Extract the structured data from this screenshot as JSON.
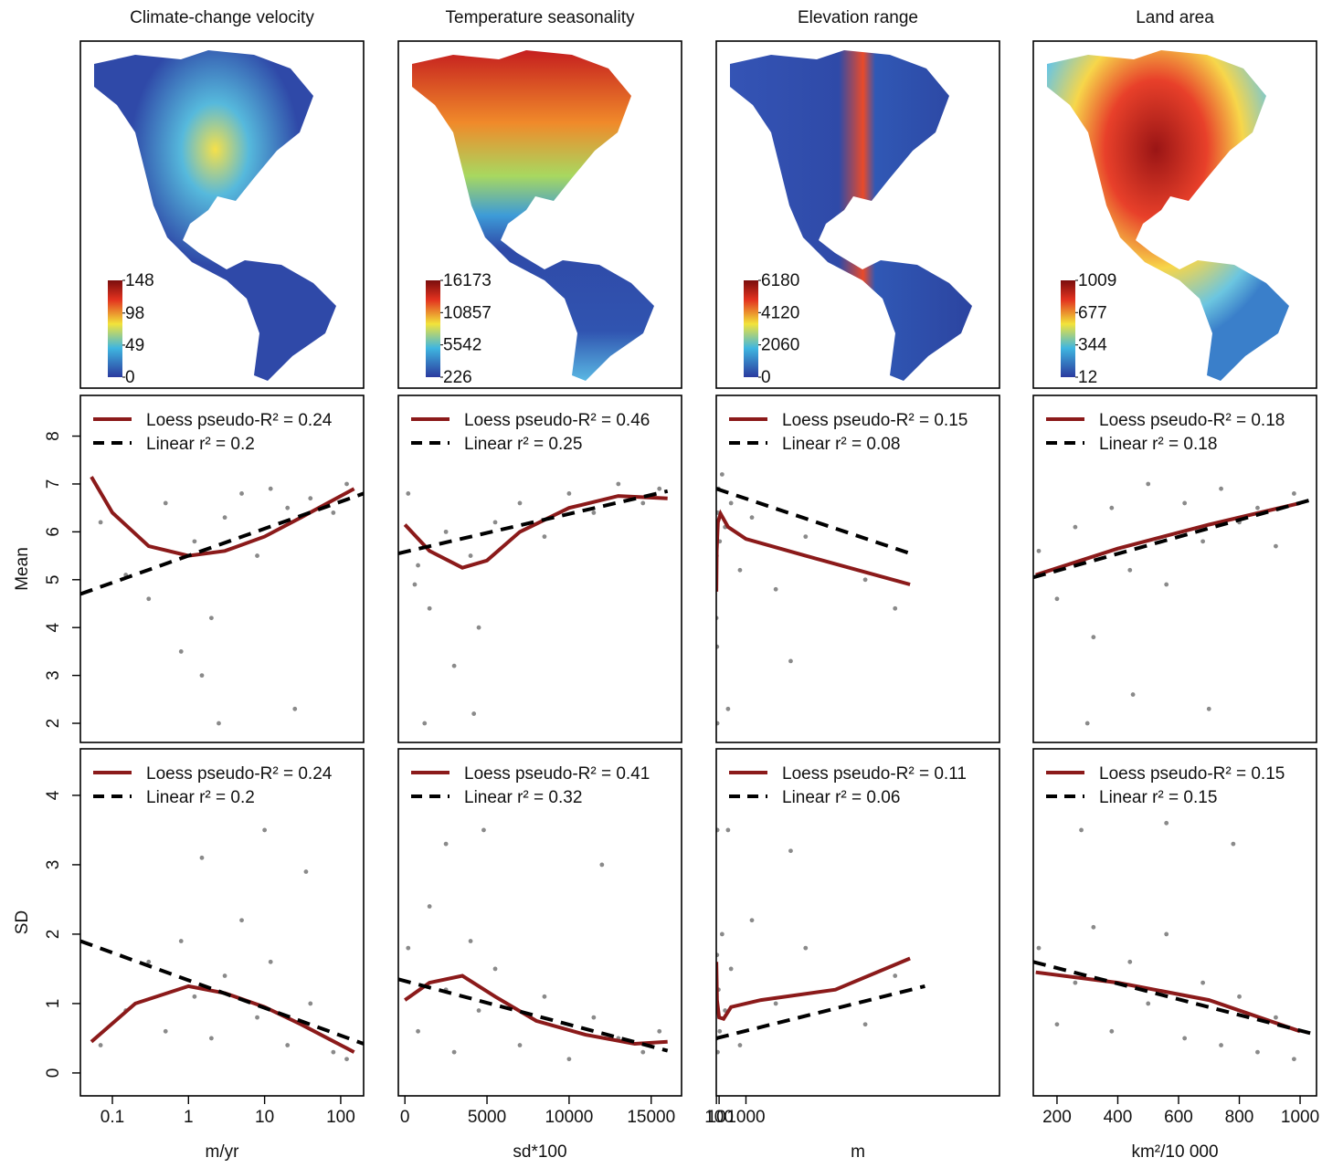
{
  "chart_data": [
    {
      "type": "map",
      "title": "Climate-change velocity",
      "colorbar_lim": [
        0,
        148
      ],
      "colorbar_ticks": [
        0,
        49,
        98,
        148
      ]
    },
    {
      "type": "map",
      "title": "Temperature seasonality",
      "colorbar_lim": [
        226,
        16173
      ],
      "colorbar_ticks": [
        226,
        5542,
        10857,
        16173
      ]
    },
    {
      "type": "map",
      "title": "Elevation range",
      "colorbar_lim": [
        0,
        6180
      ],
      "colorbar_ticks": [
        0,
        2060,
        4120,
        6180
      ]
    },
    {
      "type": "map",
      "title": "Land area",
      "colorbar_lim": [
        12,
        1009
      ],
      "colorbar_ticks": [
        12,
        344,
        677,
        1009
      ]
    },
    {
      "type": "scatter",
      "ylabel": "Mean",
      "log_x": true,
      "xlim": [
        0.038,
        200
      ],
      "ylim": [
        1.6,
        8.85
      ],
      "yticks": [
        2,
        3,
        4,
        5,
        6,
        7,
        8
      ],
      "color": "#8a8a8a",
      "x": [
        0.07,
        0.15,
        0.3,
        0.5,
        0.8,
        1.2,
        2,
        3,
        5,
        8,
        12,
        20,
        40,
        80,
        120,
        2.5,
        25,
        1.5
      ],
      "y": [
        6.2,
        5.1,
        4.6,
        6.6,
        3.5,
        5.8,
        4.2,
        6.3,
        6.8,
        5.5,
        6.9,
        6.5,
        6.7,
        6.4,
        7.0,
        2.0,
        2.3,
        3.0
      ],
      "series": [
        {
          "name": "Loess pseudo-R² = 0.24",
          "color": "#8b1a1a",
          "x": [
            0.053,
            0.1,
            0.3,
            1,
            3,
            10,
            30,
            150
          ],
          "y": [
            7.15,
            6.4,
            5.7,
            5.5,
            5.6,
            5.9,
            6.3,
            6.9
          ]
        },
        {
          "name": "Linear r² = 0.2",
          "color": "#000000",
          "dashed": true,
          "x": [
            0.038,
            200
          ],
          "y": [
            4.7,
            6.8
          ]
        }
      ]
    },
    {
      "type": "scatter",
      "xlim": [
        -400,
        16850
      ],
      "ylim": [
        1.6,
        8.85
      ],
      "color": "#8a8a8a",
      "x": [
        200,
        800,
        1500,
        2500,
        3000,
        4000,
        4500,
        5500,
        7000,
        8500,
        10000,
        11500,
        13000,
        14500,
        15500,
        1200,
        4200,
        600
      ],
      "y": [
        6.8,
        5.3,
        4.4,
        6.0,
        3.2,
        5.5,
        4.0,
        6.2,
        6.6,
        5.9,
        6.8,
        6.4,
        7.0,
        6.6,
        6.9,
        2.0,
        2.2,
        4.9
      ],
      "series": [
        {
          "name": "Loess pseudo-R² = 0.46",
          "color": "#8b1a1a",
          "x": [
            0,
            1500,
            3500,
            5000,
            7000,
            10000,
            13000,
            16000
          ],
          "y": [
            6.15,
            5.6,
            5.25,
            5.4,
            6.0,
            6.5,
            6.75,
            6.7
          ]
        },
        {
          "name": "Linear r² = 0.25",
          "color": "#000000",
          "dashed": true,
          "x": [
            -400,
            16000
          ],
          "y": [
            5.55,
            6.85
          ]
        }
      ]
    },
    {
      "type": "scatter",
      "xlim": [
        5.2,
        9500
      ],
      "ylim": [
        1.6,
        8.85
      ],
      "color": "#8a8a8a",
      "x": [
        8,
        15,
        30,
        50,
        80,
        120,
        200,
        300,
        500,
        800,
        1200,
        2000,
        3000,
        5000,
        6000,
        40,
        400,
        2500
      ],
      "y": [
        4.2,
        5.5,
        3.6,
        6.4,
        6.9,
        5.8,
        7.2,
        6.1,
        6.6,
        5.2,
        6.3,
        4.8,
        5.9,
        5.0,
        4.4,
        2.0,
        2.3,
        3.3
      ],
      "series": [
        {
          "name": "Loess pseudo-R² = 0.15",
          "color": "#8b1a1a",
          "x": [
            7,
            20,
            60,
            150,
            400,
            1000,
            3000,
            6500
          ],
          "y": [
            4.75,
            5.6,
            6.2,
            6.38,
            6.1,
            5.85,
            5.5,
            4.9
          ]
        },
        {
          "name": "Linear r² = 0.08",
          "color": "#000000",
          "dashed": true,
          "x": [
            5.2,
            6500
          ],
          "y": [
            6.9,
            5.55
          ]
        }
      ]
    },
    {
      "type": "scatter",
      "xlim": [
        122,
        1054
      ],
      "ylim": [
        1.6,
        8.85
      ],
      "color": "#8a8a8a",
      "x": [
        140,
        200,
        260,
        320,
        380,
        440,
        500,
        560,
        620,
        680,
        740,
        800,
        860,
        920,
        980,
        300,
        700,
        450
      ],
      "y": [
        5.6,
        4.6,
        6.1,
        3.8,
        6.5,
        5.2,
        7.0,
        4.9,
        6.6,
        5.8,
        6.9,
        6.2,
        6.5,
        5.7,
        6.8,
        2.0,
        2.3,
        2.6
      ],
      "series": [
        {
          "name": "Loess pseudo-R² = 0.18",
          "color": "#8b1a1a",
          "x": [
            130,
            400,
            700,
            1000
          ],
          "y": [
            5.1,
            5.65,
            6.15,
            6.6
          ]
        },
        {
          "name": "Linear r² = 0.18",
          "color": "#000000",
          "dashed": true,
          "x": [
            122,
            1054
          ],
          "y": [
            5.05,
            6.7
          ]
        }
      ]
    },
    {
      "type": "scatter",
      "ylabel": "SD",
      "xlabel": "m/yr",
      "log_x": true,
      "xlim": [
        0.038,
        200
      ],
      "ylim": [
        -0.33,
        4.67
      ],
      "yticks": [
        0,
        1,
        2,
        3,
        4
      ],
      "xticks": [
        0.1,
        1,
        10,
        100
      ],
      "color": "#8a8a8a",
      "x": [
        0.07,
        0.15,
        0.3,
        0.5,
        0.8,
        1.2,
        2,
        3,
        5,
        8,
        12,
        20,
        40,
        80,
        120,
        10,
        1.5,
        35
      ],
      "y": [
        0.4,
        0.9,
        1.6,
        0.6,
        1.9,
        1.1,
        0.5,
        1.4,
        2.2,
        0.8,
        1.6,
        0.4,
        1.0,
        0.3,
        0.2,
        3.5,
        3.1,
        2.9
      ],
      "series": [
        {
          "name": "Loess pseudo-R² = 0.24",
          "color": "#8b1a1a",
          "x": [
            0.053,
            0.2,
            1,
            3,
            10,
            30,
            150
          ],
          "y": [
            0.45,
            1.0,
            1.25,
            1.15,
            0.95,
            0.7,
            0.3
          ]
        },
        {
          "name": "Linear r² = 0.2",
          "color": "#000000",
          "dashed": true,
          "x": [
            0.038,
            200
          ],
          "y": [
            1.9,
            0.42
          ]
        }
      ]
    },
    {
      "type": "scatter",
      "xlabel": "sd*100",
      "xlim": [
        -400,
        16850
      ],
      "ylim": [
        -0.33,
        4.67
      ],
      "xticks": [
        0,
        5000,
        10000,
        15000
      ],
      "color": "#8a8a8a",
      "x": [
        200,
        800,
        1500,
        2500,
        3000,
        4000,
        4500,
        5500,
        7000,
        8500,
        10000,
        11500,
        13000,
        14500,
        15500,
        4800,
        2500,
        12000
      ],
      "y": [
        1.8,
        0.6,
        2.4,
        1.2,
        0.3,
        1.9,
        0.9,
        1.5,
        0.4,
        1.1,
        0.2,
        0.8,
        0.5,
        0.3,
        0.6,
        3.5,
        3.3,
        3.0
      ],
      "series": [
        {
          "name": "Loess pseudo-R² = 0.41",
          "color": "#8b1a1a",
          "x": [
            0,
            1500,
            3500,
            5500,
            8000,
            11000,
            14000,
            16000
          ],
          "y": [
            1.05,
            1.3,
            1.4,
            1.1,
            0.75,
            0.55,
            0.42,
            0.45
          ]
        },
        {
          "name": "Linear r² = 0.32",
          "color": "#000000",
          "dashed": true,
          "x": [
            -400,
            16000
          ],
          "y": [
            1.35,
            0.32
          ]
        }
      ]
    },
    {
      "type": "scatter",
      "xlabel": "m",
      "xlim": [
        5.2,
        9500
      ],
      "ylim": [
        -0.33,
        4.67
      ],
      "xticks": [
        10,
        100,
        1000
      ],
      "color": "#8a8a8a",
      "x": [
        8,
        15,
        30,
        50,
        80,
        120,
        200,
        300,
        500,
        800,
        1200,
        2000,
        3000,
        5000,
        6000,
        40,
        400,
        2500
      ],
      "y": [
        1.3,
        0.5,
        1.7,
        0.3,
        1.2,
        0.6,
        2.0,
        0.9,
        1.5,
        0.4,
        2.2,
        1.0,
        1.8,
        0.7,
        1.4,
        3.5,
        3.5,
        3.2
      ],
      "series": [
        {
          "name": "Loess pseudo-R² = 0.11",
          "color": "#8b1a1a",
          "x": [
            7,
            30,
            100,
            250,
            500,
            1500,
            4000,
            6500
          ],
          "y": [
            1.6,
            1.05,
            0.8,
            0.78,
            0.95,
            1.05,
            1.2,
            1.65
          ]
        },
        {
          "name": "Linear r² = 0.06",
          "color": "#000000",
          "dashed": true,
          "x": [
            5.2,
            7000
          ],
          "y": [
            0.5,
            1.25
          ]
        }
      ]
    },
    {
      "type": "scatter",
      "xlabel": "km²/10 000",
      "xlim": [
        122,
        1054
      ],
      "ylim": [
        -0.33,
        4.67
      ],
      "xticks": [
        200,
        400,
        600,
        800,
        1000
      ],
      "color": "#8a8a8a",
      "x": [
        140,
        200,
        260,
        320,
        380,
        440,
        500,
        560,
        620,
        680,
        740,
        800,
        860,
        920,
        980,
        280,
        560,
        780
      ],
      "y": [
        1.8,
        0.7,
        1.3,
        2.1,
        0.6,
        1.6,
        1.0,
        2.0,
        0.5,
        1.3,
        0.4,
        1.1,
        0.3,
        0.8,
        0.2,
        3.5,
        3.6,
        3.3
      ],
      "series": [
        {
          "name": "Loess pseudo-R² = 0.15",
          "color": "#8b1a1a",
          "x": [
            130,
            400,
            700,
            1000
          ],
          "y": [
            1.45,
            1.3,
            1.05,
            0.6
          ]
        },
        {
          "name": "Linear r² = 0.15",
          "color": "#000000",
          "dashed": true,
          "x": [
            122,
            1054
          ],
          "y": [
            1.6,
            0.55
          ]
        }
      ]
    }
  ]
}
